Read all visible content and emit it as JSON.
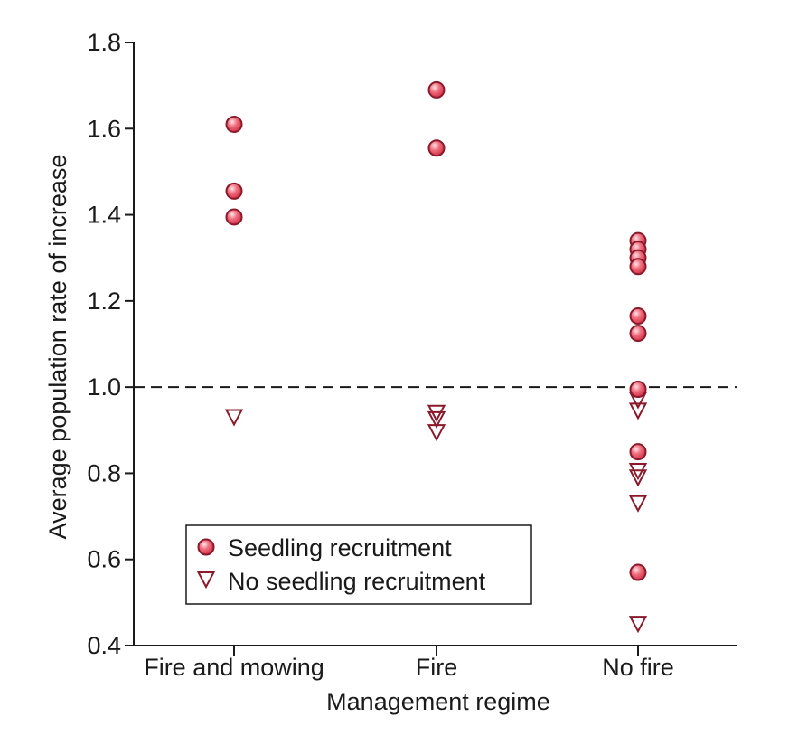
{
  "chart_data": {
    "type": "scatter",
    "title": "",
    "xlabel": "Management regime",
    "ylabel": "Average population rate of increase",
    "categories": [
      "Fire and mowing",
      "Fire",
      "No fire"
    ],
    "ylim": [
      0.4,
      1.8
    ],
    "yticks": [
      "0.4",
      "0.6",
      "0.8",
      "1.0",
      "1.2",
      "1.4",
      "1.6",
      "1.8"
    ],
    "reference_line": {
      "y": 1.0,
      "style": "dashed"
    },
    "legend_position": "bottom-left",
    "series": [
      {
        "name": "Seedling recruitment",
        "marker": "circle",
        "color": "#e0495b",
        "points": [
          {
            "category": "Fire and mowing",
            "y": 1.61
          },
          {
            "category": "Fire and mowing",
            "y": 1.455
          },
          {
            "category": "Fire and mowing",
            "y": 1.395
          },
          {
            "category": "Fire",
            "y": 1.69
          },
          {
            "category": "Fire",
            "y": 1.555
          },
          {
            "category": "No fire",
            "y": 1.34
          },
          {
            "category": "No fire",
            "y": 1.32
          },
          {
            "category": "No fire",
            "y": 1.3
          },
          {
            "category": "No fire",
            "y": 1.28
          },
          {
            "category": "No fire",
            "y": 1.165
          },
          {
            "category": "No fire",
            "y": 1.125
          },
          {
            "category": "No fire",
            "y": 0.995
          },
          {
            "category": "No fire",
            "y": 0.85
          },
          {
            "category": "No fire",
            "y": 0.57
          }
        ]
      },
      {
        "name": "No seedling recruitment",
        "marker": "triangle-down",
        "color": "#8a1a2b",
        "points": [
          {
            "category": "Fire and mowing",
            "y": 0.93
          },
          {
            "category": "Fire",
            "y": 0.94
          },
          {
            "category": "Fire",
            "y": 0.925
          },
          {
            "category": "Fire",
            "y": 0.895
          },
          {
            "category": "No fire",
            "y": 0.97
          },
          {
            "category": "No fire",
            "y": 0.945
          },
          {
            "category": "No fire",
            "y": 0.805
          },
          {
            "category": "No fire",
            "y": 0.79
          },
          {
            "category": "No fire",
            "y": 0.73
          },
          {
            "category": "No fire",
            "y": 0.45
          }
        ]
      }
    ]
  }
}
